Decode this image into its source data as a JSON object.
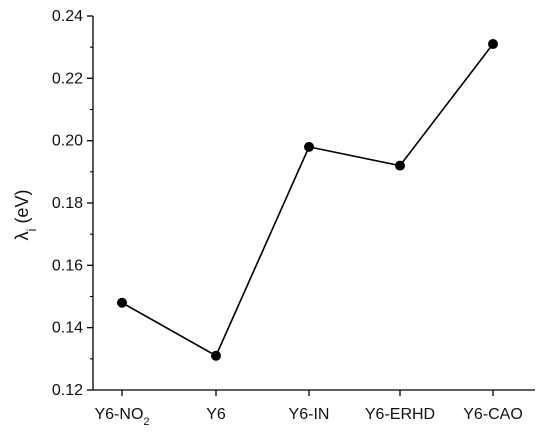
{
  "chart_data": {
    "type": "line",
    "categories": [
      "Y6-NO2",
      "Y6",
      "Y6-IN",
      "Y6-ERHD",
      "Y6-CAO"
    ],
    "category_labels": [
      {
        "base": "Y6-NO",
        "sub": "2"
      },
      {
        "base": "Y6",
        "sub": ""
      },
      {
        "base": "Y6-IN",
        "sub": ""
      },
      {
        "base": "Y6-ERHD",
        "sub": ""
      },
      {
        "base": "Y6-CAO",
        "sub": ""
      }
    ],
    "series": [
      {
        "values": [
          0.148,
          0.131,
          0.198,
          0.192,
          0.231
        ]
      }
    ],
    "ylabel": {
      "main": "λ",
      "sub": "i",
      "unit": " (eV)"
    },
    "xlabel": "",
    "title": "",
    "ylim": [
      0.12,
      0.24
    ],
    "yticks": [
      "0.12",
      "0.14",
      "0.16",
      "0.18",
      "0.20",
      "0.22",
      "0.24"
    ],
    "grid": false,
    "legend": "none",
    "colors": {
      "line": "#000000",
      "marker": "#000000",
      "axis": "#000000"
    }
  }
}
